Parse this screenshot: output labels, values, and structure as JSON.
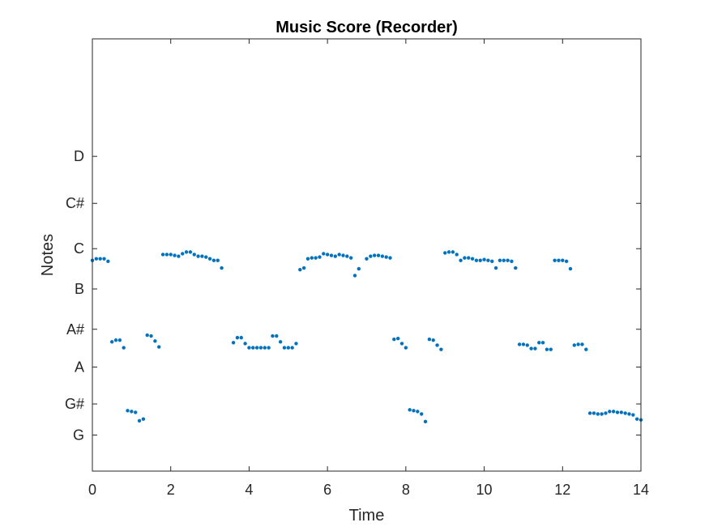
{
  "chart_data": {
    "type": "scatter",
    "title": "Music Score (Recorder)",
    "xlabel": "Time",
    "ylabel": "Notes",
    "xlim": [
      0,
      14
    ],
    "xticks": [
      0,
      2,
      4,
      6,
      8,
      10,
      12,
      14
    ],
    "xtick_labels": [
      "0",
      "2",
      "4",
      "6",
      "8",
      "10",
      "12",
      "14"
    ],
    "ylim": [
      2.9,
      8.05
    ],
    "yticks": [
      {
        "value": 3.33,
        "label": "G"
      },
      {
        "value": 3.7,
        "label": "G#"
      },
      {
        "value": 4.14,
        "label": "A"
      },
      {
        "value": 4.59,
        "label": "A#"
      },
      {
        "value": 5.07,
        "label": "B"
      },
      {
        "value": 5.55,
        "label": "C"
      },
      {
        "value": 6.09,
        "label": "C#"
      },
      {
        "value": 6.65,
        "label": "D"
      }
    ],
    "grid": false,
    "marker_color": "#0072BD",
    "series": [
      {
        "points": [
          [
            0.0,
            5.41
          ],
          [
            0.1,
            5.43
          ],
          [
            0.2,
            5.43
          ],
          [
            0.3,
            5.43
          ],
          [
            0.4,
            5.4
          ],
          [
            0.5,
            4.44
          ],
          [
            0.6,
            4.46
          ],
          [
            0.7,
            4.46
          ],
          [
            0.8,
            4.37
          ],
          [
            0.9,
            3.62
          ],
          [
            1.0,
            3.61
          ],
          [
            1.1,
            3.6
          ],
          [
            1.2,
            3.5
          ],
          [
            1.3,
            3.52
          ],
          [
            1.4,
            4.52
          ],
          [
            1.5,
            4.51
          ],
          [
            1.6,
            4.45
          ],
          [
            1.7,
            4.38
          ],
          [
            1.8,
            5.48
          ],
          [
            1.9,
            5.48
          ],
          [
            2.0,
            5.48
          ],
          [
            2.1,
            5.47
          ],
          [
            2.2,
            5.46
          ],
          [
            2.3,
            5.49
          ],
          [
            2.4,
            5.51
          ],
          [
            2.5,
            5.51
          ],
          [
            2.6,
            5.48
          ],
          [
            2.7,
            5.46
          ],
          [
            2.8,
            5.46
          ],
          [
            2.9,
            5.45
          ],
          [
            3.0,
            5.43
          ],
          [
            3.1,
            5.41
          ],
          [
            3.2,
            5.41
          ],
          [
            3.3,
            5.32
          ],
          [
            3.6,
            4.43
          ],
          [
            3.7,
            4.49
          ],
          [
            3.8,
            4.49
          ],
          [
            3.9,
            4.42
          ],
          [
            4.0,
            4.37
          ],
          [
            4.1,
            4.37
          ],
          [
            4.2,
            4.37
          ],
          [
            4.3,
            4.37
          ],
          [
            4.4,
            4.37
          ],
          [
            4.5,
            4.37
          ],
          [
            4.6,
            4.51
          ],
          [
            4.7,
            4.51
          ],
          [
            4.8,
            4.44
          ],
          [
            4.9,
            4.37
          ],
          [
            5.0,
            4.37
          ],
          [
            5.1,
            4.37
          ],
          [
            5.2,
            4.42
          ],
          [
            5.3,
            5.3
          ],
          [
            5.4,
            5.32
          ],
          [
            5.5,
            5.43
          ],
          [
            5.6,
            5.44
          ],
          [
            5.7,
            5.44
          ],
          [
            5.8,
            5.45
          ],
          [
            5.9,
            5.49
          ],
          [
            6.0,
            5.48
          ],
          [
            6.1,
            5.47
          ],
          [
            6.2,
            5.46
          ],
          [
            6.3,
            5.48
          ],
          [
            6.4,
            5.47
          ],
          [
            6.5,
            5.46
          ],
          [
            6.6,
            5.44
          ],
          [
            6.7,
            5.23
          ],
          [
            6.8,
            5.31
          ],
          [
            7.0,
            5.43
          ],
          [
            7.1,
            5.46
          ],
          [
            7.2,
            5.47
          ],
          [
            7.3,
            5.47
          ],
          [
            7.4,
            5.46
          ],
          [
            7.5,
            5.45
          ],
          [
            7.6,
            5.44
          ],
          [
            7.7,
            4.47
          ],
          [
            7.8,
            4.48
          ],
          [
            7.9,
            4.42
          ],
          [
            8.0,
            4.37
          ],
          [
            8.1,
            3.63
          ],
          [
            8.2,
            3.62
          ],
          [
            8.3,
            3.61
          ],
          [
            8.4,
            3.58
          ],
          [
            8.5,
            3.49
          ],
          [
            8.6,
            4.47
          ],
          [
            8.7,
            4.46
          ],
          [
            8.8,
            4.4
          ],
          [
            8.9,
            4.35
          ],
          [
            9.0,
            5.5
          ],
          [
            9.1,
            5.51
          ],
          [
            9.2,
            5.51
          ],
          [
            9.3,
            5.48
          ],
          [
            9.4,
            5.41
          ],
          [
            9.5,
            5.44
          ],
          [
            9.6,
            5.44
          ],
          [
            9.7,
            5.43
          ],
          [
            9.8,
            5.41
          ],
          [
            9.9,
            5.41
          ],
          [
            10.0,
            5.42
          ],
          [
            10.1,
            5.41
          ],
          [
            10.2,
            5.4
          ],
          [
            10.3,
            5.32
          ],
          [
            10.4,
            5.41
          ],
          [
            10.5,
            5.41
          ],
          [
            10.6,
            5.41
          ],
          [
            10.7,
            5.4
          ],
          [
            10.8,
            5.32
          ],
          [
            10.9,
            4.41
          ],
          [
            11.0,
            4.41
          ],
          [
            11.1,
            4.4
          ],
          [
            11.2,
            4.36
          ],
          [
            11.3,
            4.36
          ],
          [
            11.4,
            4.43
          ],
          [
            11.5,
            4.43
          ],
          [
            11.6,
            4.35
          ],
          [
            11.7,
            4.35
          ],
          [
            11.8,
            5.41
          ],
          [
            11.9,
            5.41
          ],
          [
            12.0,
            5.41
          ],
          [
            12.1,
            5.4
          ],
          [
            12.2,
            5.31
          ],
          [
            12.3,
            4.4
          ],
          [
            12.4,
            4.41
          ],
          [
            12.5,
            4.41
          ],
          [
            12.6,
            4.35
          ],
          [
            12.7,
            3.59
          ],
          [
            12.8,
            3.59
          ],
          [
            12.9,
            3.58
          ],
          [
            13.0,
            3.58
          ],
          [
            13.1,
            3.59
          ],
          [
            13.2,
            3.61
          ],
          [
            13.3,
            3.61
          ],
          [
            13.4,
            3.6
          ],
          [
            13.5,
            3.6
          ],
          [
            13.6,
            3.59
          ],
          [
            13.7,
            3.58
          ],
          [
            13.8,
            3.57
          ],
          [
            13.9,
            3.52
          ],
          [
            14.0,
            3.51
          ]
        ]
      }
    ]
  }
}
